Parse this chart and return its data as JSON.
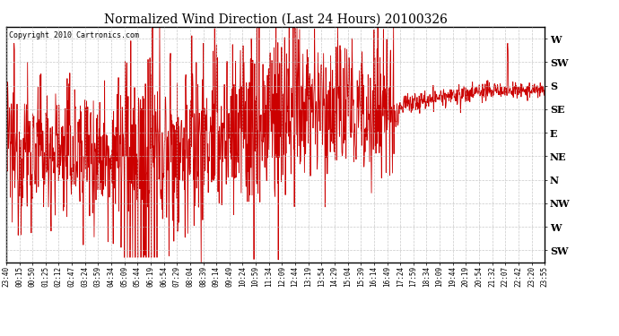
{
  "title": "Normalized Wind Direction (Last 24 Hours) 20100326",
  "copyright_text": "Copyright 2010 Cartronics.com",
  "line_color": "#cc0000",
  "background_color": "#ffffff",
  "grid_color": "#bbbbbb",
  "y_tick_labels": [
    "SW",
    "W",
    "NW",
    "N",
    "NE",
    "E",
    "SE",
    "S",
    "SW",
    "W"
  ],
  "y_tick_values": [
    0,
    1,
    2,
    3,
    4,
    5,
    6,
    7,
    8,
    9
  ],
  "ylim": [
    -0.5,
    9.5
  ],
  "x_tick_labels": [
    "23:40",
    "00:15",
    "00:50",
    "01:25",
    "02:12",
    "02:47",
    "03:24",
    "03:59",
    "04:34",
    "05:09",
    "05:44",
    "06:19",
    "06:54",
    "07:29",
    "08:04",
    "08:39",
    "09:14",
    "09:49",
    "10:24",
    "10:59",
    "11:34",
    "12:09",
    "12:44",
    "13:19",
    "13:54",
    "14:29",
    "15:04",
    "15:39",
    "16:14",
    "16:49",
    "17:24",
    "17:59",
    "18:34",
    "19:09",
    "19:44",
    "20:19",
    "20:54",
    "21:32",
    "22:07",
    "22:42",
    "23:20",
    "23:55"
  ],
  "figsize": [
    6.9,
    3.75
  ],
  "dpi": 100
}
